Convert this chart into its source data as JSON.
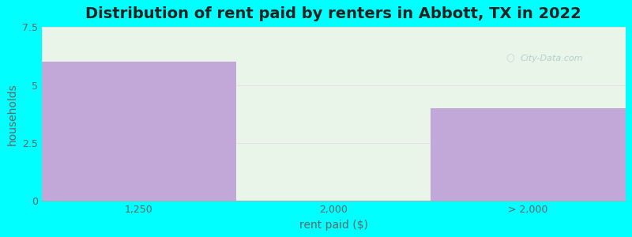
{
  "title": "Distribution of rent paid by renters in Abbott, TX in 2022",
  "xlabel": "rent paid ($)",
  "ylabel": "households",
  "categories": [
    "1,250",
    "2,000",
    "> 2,000"
  ],
  "values": [
    6,
    0,
    4
  ],
  "ylim": [
    0,
    7.5
  ],
  "yticks": [
    0,
    2.5,
    5,
    7.5
  ],
  "bar_color": "#c2a8d8",
  "bg_outer": "#00ffff",
  "bg_plot": "#eaf5ea",
  "title_fontsize": 14,
  "axis_label_fontsize": 10,
  "tick_fontsize": 9,
  "watermark_text": "City-Data.com",
  "bar_positions": [
    0.5,
    1.5,
    2.5
  ],
  "bar_width": 1.0,
  "xlim": [
    0,
    3
  ]
}
